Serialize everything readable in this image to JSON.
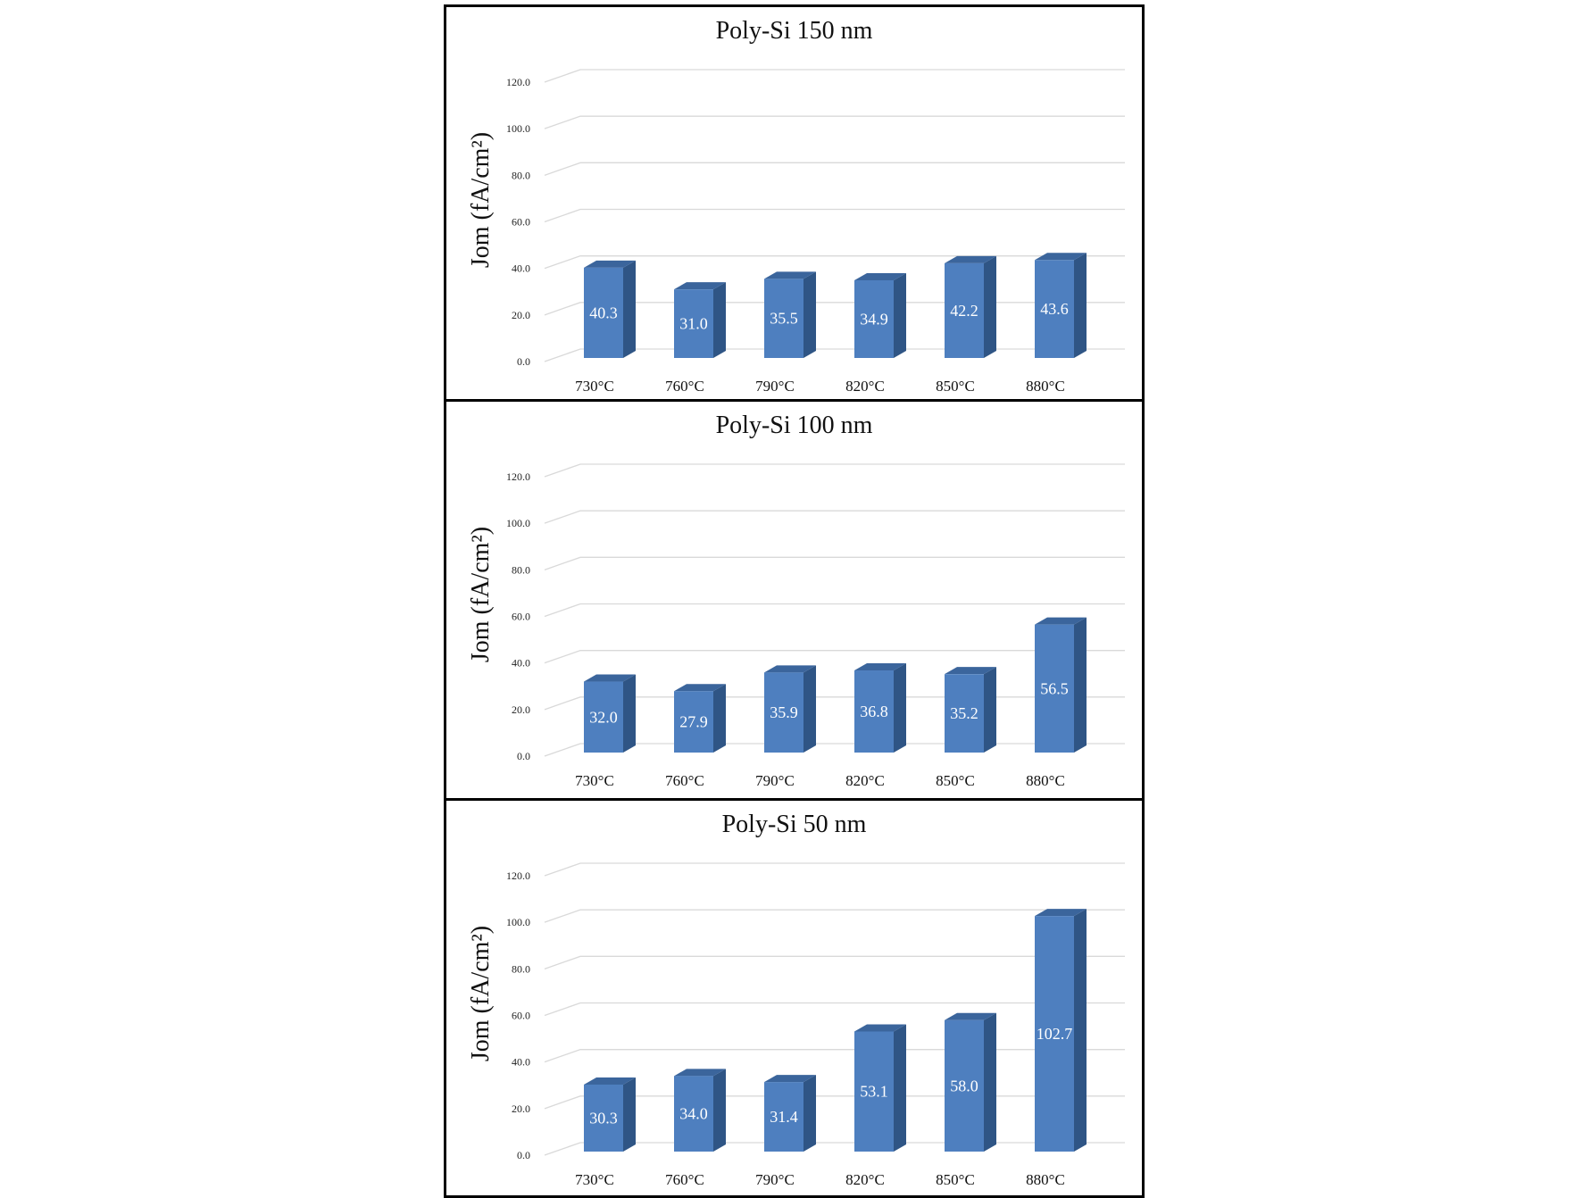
{
  "chart_data": [
    {
      "type": "bar",
      "title": "Poly-Si 150 nm",
      "ylabel": "Jom (fA/cm²)",
      "xlabel": "",
      "categories": [
        "730°C",
        "760°C",
        "790°C",
        "820°C",
        "850°C",
        "880°C"
      ],
      "values": [
        40.3,
        31.0,
        35.5,
        34.9,
        42.2,
        43.6
      ],
      "value_labels": [
        "40.3",
        "31.0",
        "35.5",
        "34.9",
        "42.2",
        "43.6"
      ],
      "yticks": [
        "0.0",
        "20.0",
        "40.0",
        "60.0",
        "80.0",
        "100.0",
        "120.0"
      ],
      "ylim": [
        0,
        120
      ],
      "grid": true
    },
    {
      "type": "bar",
      "title": "Poly-Si 100 nm",
      "ylabel": "Jom (fA/cm²)",
      "xlabel": "",
      "categories": [
        "730°C",
        "760°C",
        "790°C",
        "820°C",
        "850°C",
        "880°C"
      ],
      "values": [
        32.0,
        27.9,
        35.9,
        36.8,
        35.2,
        56.5
      ],
      "value_labels": [
        "32.0",
        "27.9",
        "35.9",
        "36.8",
        "35.2",
        "56.5"
      ],
      "yticks": [
        "0.0",
        "20.0",
        "40.0",
        "60.0",
        "80.0",
        "100.0",
        "120.0"
      ],
      "ylim": [
        0,
        120
      ],
      "grid": true
    },
    {
      "type": "bar",
      "title": "Poly-Si 50 nm",
      "ylabel": "Jom (fA/cm²)",
      "xlabel": "",
      "categories": [
        "730°C",
        "760°C",
        "790°C",
        "820°C",
        "850°C",
        "880°C"
      ],
      "values": [
        30.3,
        34.0,
        31.4,
        53.1,
        58.0,
        102.7
      ],
      "value_labels": [
        "30.3",
        "34.0",
        "31.4",
        "53.1",
        "58.0",
        "102.7"
      ],
      "yticks": [
        "0.0",
        "20.0",
        "40.0",
        "60.0",
        "80.0",
        "100.0",
        "120.0"
      ],
      "ylim": [
        0,
        120
      ],
      "grid": true
    }
  ],
  "colors": {
    "bar_front": "#4e7fbf",
    "bar_side": "#2f5585",
    "bar_top": "#3b659c",
    "grid": "#d9d9d9",
    "frame": "#000000"
  }
}
